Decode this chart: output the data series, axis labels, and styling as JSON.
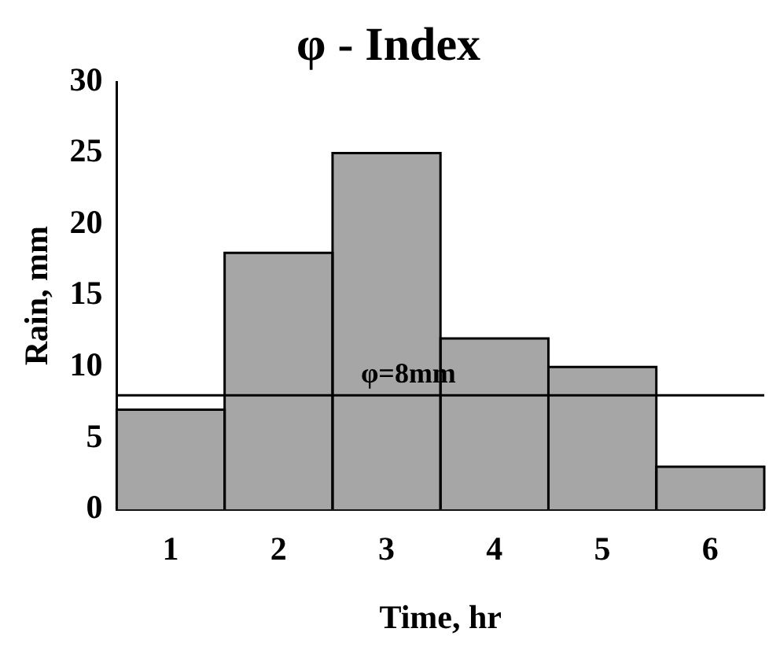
{
  "chart_data": {
    "type": "bar",
    "title": "φ - Index",
    "xlabel": "Time, hr",
    "ylabel": "Rain, mm",
    "categories": [
      "1",
      "2",
      "3",
      "4",
      "5",
      "6"
    ],
    "values": [
      7,
      18,
      25,
      12,
      10,
      3
    ],
    "color": "#a6a6a6",
    "ylim": [
      0,
      30
    ],
    "yticks": [
      0,
      5,
      10,
      15,
      20,
      25,
      30
    ],
    "grid": false,
    "legend": false,
    "ref_lines": [
      {
        "axis": "y",
        "value": 8,
        "label": "φ=8mm",
        "color": "#000000"
      }
    ]
  }
}
